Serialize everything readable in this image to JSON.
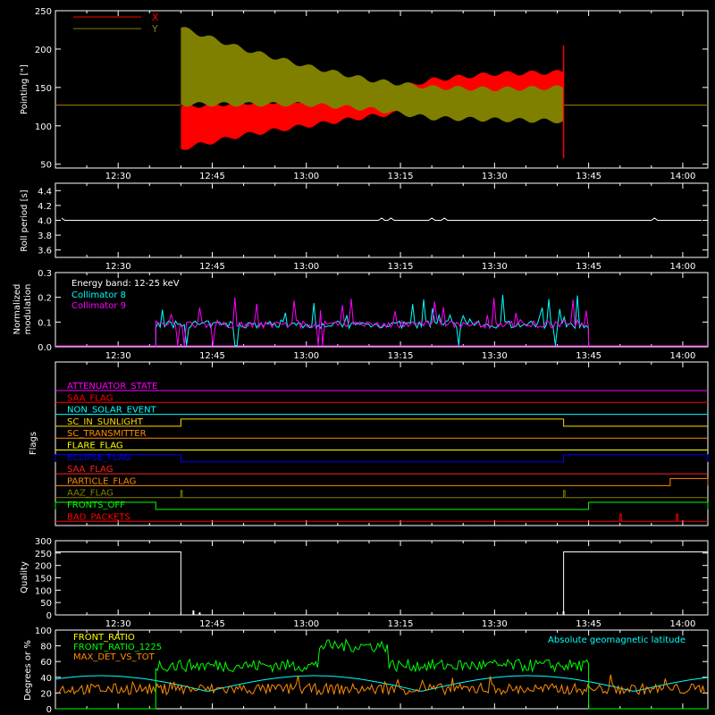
{
  "colors": {
    "background": "#000000",
    "axis": "#ffffff",
    "x_series": "#ff0000",
    "y_series": "#808000",
    "collimator8": "#00ffff",
    "collimator9": "#ff00ff",
    "front_ratio": "#ffff00",
    "front_ratio_1225": "#00ff00",
    "max_det": "#ff8c00",
    "geomag": "#00ffff"
  },
  "time_ticks": [
    "12:30",
    "12:45",
    "13:00",
    "13:15",
    "13:30",
    "13:45",
    "14:00"
  ],
  "panels": {
    "pointing": {
      "ylabel": "Pointing [\"]"
    },
    "roll": {
      "ylabel": "Roll period [s]"
    },
    "modulation": {
      "ylabel_line1": "Normalized",
      "ylabel_line2": "modulation"
    },
    "flags": {
      "ylabel": "Flags"
    },
    "quality": {
      "ylabel": "Quality"
    },
    "ratio": {
      "ylabel": "Degrees or %"
    }
  },
  "chart_data": [
    {
      "type": "area",
      "id": "pointing",
      "x_range": [
        "12:20",
        "14:04"
      ],
      "ylim": [
        45,
        250
      ],
      "yticks": [
        "50",
        "100",
        "150",
        "200",
        "250"
      ],
      "legend_position": "top-left",
      "series": [
        {
          "name": "X",
          "color": "#ff0000",
          "before_start": 127,
          "start_time": "12:40",
          "end_time": "13:41",
          "envelope_time": [
            "12:40",
            "12:50",
            "13:00",
            "13:10",
            "13:20",
            "13:30",
            "13:41"
          ],
          "envelope_low": [
            70,
            88,
            100,
            112,
            122,
            128,
            128
          ],
          "envelope_high": [
            125,
            130,
            133,
            140,
            160,
            168,
            170
          ]
        },
        {
          "name": "Y",
          "color": "#808000",
          "before_start": 127,
          "start_time": "12:40",
          "end_time": "13:41",
          "envelope_time": [
            "12:40",
            "12:50",
            "13:00",
            "13:10",
            "13:20",
            "13:30",
            "13:41"
          ],
          "envelope_low": [
            128,
            128,
            128,
            122,
            110,
            108,
            106
          ],
          "envelope_high": [
            228,
            200,
            178,
            160,
            150,
            148,
            150
          ]
        }
      ]
    },
    {
      "type": "line",
      "id": "roll",
      "ylim": [
        3.5,
        4.5
      ],
      "yticks": [
        "3.6",
        "3.8",
        "4.0",
        "4.2",
        "4.4"
      ],
      "series": [
        {
          "name": "",
          "color": "#ffffff",
          "value": 4.0
        }
      ]
    },
    {
      "type": "line",
      "id": "modulation",
      "ylim": [
        0,
        0.3
      ],
      "yticks": [
        "0.0",
        "0.1",
        "0.2",
        "0.3"
      ],
      "annotations": [
        "Energy band: 12-25 keV"
      ],
      "legend_position": "top-left",
      "active_range": [
        "12:36",
        "13:45"
      ],
      "series": [
        {
          "name": "Collimator 8",
          "color": "#00ffff",
          "typical": 0.09
        },
        {
          "name": "Collimator 9",
          "color": "#ff00ff",
          "typical": 0.09
        }
      ]
    },
    {
      "type": "line",
      "id": "flags",
      "series": [
        {
          "name": "ATTENUATOR_STATE",
          "color": "#ff00ff",
          "steps": []
        },
        {
          "name": "SAA_FLAG",
          "color": "#ff0000",
          "steps": []
        },
        {
          "name": "NON_SOLAR_EVENT",
          "color": "#00ffff",
          "steps": []
        },
        {
          "name": "SC_IN_SUNLIGHT",
          "color": "#ffd700",
          "steps": [
            [
              "12:40",
              "13:41"
            ]
          ]
        },
        {
          "name": "SC_TRANSMITTER",
          "color": "#ff8c00",
          "steps": []
        },
        {
          "name": "FLARE_FLAG",
          "color": "#ffff00",
          "steps": []
        },
        {
          "name": "ECLIPSE_FLAG",
          "color": "#0000ff",
          "steps": [
            [
              "12:20",
              "12:40"
            ],
            [
              "13:41",
              "14:04"
            ]
          ]
        },
        {
          "name": "SAA_FLAG",
          "color": "#ff2020",
          "steps": []
        },
        {
          "name": "PARTICLE_FLAG",
          "color": "#ff8c00",
          "steps": [
            [
              "13:58",
              "14:04"
            ]
          ]
        },
        {
          "name": "AAZ_FLAG",
          "color": "#808000",
          "steps": [
            [
              "12:40",
              "12:40"
            ],
            [
              "13:41",
              "13:41"
            ]
          ]
        },
        {
          "name": "FRONTS_OFF",
          "color": "#00ff00",
          "steps": [
            [
              "12:20",
              "12:36"
            ],
            [
              "13:45",
              "14:04"
            ]
          ]
        },
        {
          "name": "BAD_PACKETS",
          "color": "#ff0000",
          "steps": [
            [
              "13:50",
              "13:50"
            ],
            [
              "13:59",
              "13:59"
            ]
          ]
        }
      ]
    },
    {
      "type": "line",
      "id": "quality",
      "ylim": [
        0,
        300
      ],
      "yticks": [
        "0",
        "50",
        "100",
        "150",
        "200",
        "250",
        "300"
      ],
      "series": [
        {
          "name": "",
          "color": "#ffffff",
          "segments": [
            [
              "12:20",
              "12:40",
              255
            ],
            [
              "12:40",
              "13:41",
              0
            ],
            [
              "13:41",
              "14:04",
              255
            ]
          ]
        }
      ]
    },
    {
      "type": "line",
      "id": "ratio",
      "ylim": [
        0,
        100
      ],
      "yticks": [
        "0",
        "20",
        "40",
        "60",
        "80",
        "100"
      ],
      "annotations": [
        "Absolute geomagnetic latitude"
      ],
      "legend_position": "top-left",
      "series": [
        {
          "name": "FRONT_RATIO",
          "color": "#ffff00"
        },
        {
          "name": "FRONT_RATIO_1225",
          "color": "#00ff00",
          "typical": 55,
          "elevated_range": [
            "13:02",
            "13:13"
          ],
          "elevated": 80
        },
        {
          "name": "MAX_DET_VS_TOT",
          "color": "#ff8c00",
          "typical": 25
        }
      ]
    }
  ]
}
